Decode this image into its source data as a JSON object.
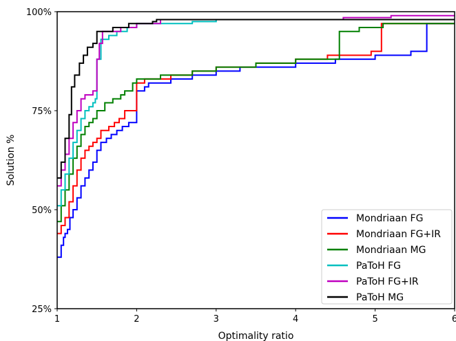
{
  "chart_data": {
    "type": "line",
    "xlabel": "Optimality ratio",
    "ylabel": "Solution %",
    "xlim": [
      1,
      6
    ],
    "ylim": [
      25,
      100
    ],
    "xticks": [
      1,
      2,
      3,
      4,
      5,
      6
    ],
    "xtick_labels": [
      "1",
      "2",
      "3",
      "4",
      "5",
      "6"
    ],
    "yticks": [
      25,
      50,
      75,
      100
    ],
    "ytick_labels": [
      "25%",
      "50%",
      "75%",
      "100%"
    ],
    "grid": false,
    "legend_position": "lower-right",
    "series": [
      {
        "name": "Mondriaan FG",
        "color": "#0000ff",
        "points": [
          [
            1.0,
            38
          ],
          [
            1.05,
            41
          ],
          [
            1.08,
            43
          ],
          [
            1.1,
            44
          ],
          [
            1.13,
            45
          ],
          [
            1.16,
            48
          ],
          [
            1.2,
            50
          ],
          [
            1.25,
            53
          ],
          [
            1.3,
            56
          ],
          [
            1.35,
            58
          ],
          [
            1.4,
            60
          ],
          [
            1.45,
            62
          ],
          [
            1.5,
            65
          ],
          [
            1.55,
            67
          ],
          [
            1.62,
            68
          ],
          [
            1.68,
            69
          ],
          [
            1.75,
            70
          ],
          [
            1.82,
            71
          ],
          [
            1.9,
            72
          ],
          [
            2.0,
            80
          ],
          [
            2.1,
            81
          ],
          [
            2.15,
            82
          ],
          [
            2.3,
            82
          ],
          [
            2.43,
            83
          ],
          [
            2.7,
            84
          ],
          [
            3.0,
            85
          ],
          [
            3.3,
            86
          ],
          [
            3.75,
            86
          ],
          [
            4.0,
            87
          ],
          [
            4.3,
            87
          ],
          [
            4.5,
            88
          ],
          [
            4.9,
            88
          ],
          [
            5.0,
            89
          ],
          [
            5.2,
            89
          ],
          [
            5.45,
            90
          ],
          [
            5.65,
            97
          ],
          [
            6.0,
            97
          ]
        ]
      },
      {
        "name": "Mondriaan FG+IR",
        "color": "#ff0000",
        "points": [
          [
            1.0,
            44
          ],
          [
            1.05,
            46
          ],
          [
            1.1,
            48
          ],
          [
            1.15,
            52
          ],
          [
            1.2,
            56
          ],
          [
            1.25,
            60
          ],
          [
            1.3,
            63
          ],
          [
            1.35,
            65
          ],
          [
            1.4,
            66
          ],
          [
            1.45,
            67
          ],
          [
            1.5,
            68
          ],
          [
            1.55,
            70
          ],
          [
            1.65,
            71
          ],
          [
            1.72,
            72
          ],
          [
            1.78,
            73
          ],
          [
            1.85,
            75
          ],
          [
            1.95,
            75
          ],
          [
            2.0,
            82
          ],
          [
            2.1,
            83
          ],
          [
            2.3,
            83
          ],
          [
            2.43,
            84
          ],
          [
            2.7,
            85
          ],
          [
            2.9,
            85
          ],
          [
            3.0,
            86
          ],
          [
            3.3,
            86
          ],
          [
            3.5,
            87
          ],
          [
            3.8,
            87
          ],
          [
            4.0,
            88
          ],
          [
            4.3,
            88
          ],
          [
            4.4,
            89
          ],
          [
            4.8,
            89
          ],
          [
            4.95,
            90
          ],
          [
            5.05,
            90
          ],
          [
            5.08,
            97
          ],
          [
            6.0,
            97
          ]
        ]
      },
      {
        "name": "Mondriaan MG",
        "color": "#008000",
        "points": [
          [
            1.0,
            47
          ],
          [
            1.05,
            51
          ],
          [
            1.1,
            55
          ],
          [
            1.15,
            59
          ],
          [
            1.2,
            63
          ],
          [
            1.25,
            66
          ],
          [
            1.3,
            69
          ],
          [
            1.35,
            71
          ],
          [
            1.4,
            72
          ],
          [
            1.45,
            73
          ],
          [
            1.5,
            75
          ],
          [
            1.6,
            77
          ],
          [
            1.7,
            78
          ],
          [
            1.8,
            79
          ],
          [
            1.85,
            80
          ],
          [
            1.95,
            82
          ],
          [
            2.0,
            83
          ],
          [
            2.2,
            83
          ],
          [
            2.3,
            84
          ],
          [
            2.6,
            84
          ],
          [
            2.7,
            85
          ],
          [
            2.9,
            85
          ],
          [
            3.0,
            86
          ],
          [
            3.4,
            86
          ],
          [
            3.5,
            87
          ],
          [
            3.8,
            87
          ],
          [
            4.0,
            88
          ],
          [
            4.4,
            88
          ],
          [
            4.55,
            95
          ],
          [
            4.7,
            95
          ],
          [
            4.8,
            96
          ],
          [
            5.0,
            96
          ],
          [
            5.1,
            97
          ],
          [
            6.0,
            97
          ]
        ]
      },
      {
        "name": "PaToH FG",
        "color": "#00bfbf",
        "points": [
          [
            1.0,
            51
          ],
          [
            1.05,
            55
          ],
          [
            1.1,
            59
          ],
          [
            1.15,
            63
          ],
          [
            1.2,
            67
          ],
          [
            1.25,
            70
          ],
          [
            1.3,
            73
          ],
          [
            1.35,
            75
          ],
          [
            1.4,
            76
          ],
          [
            1.45,
            77
          ],
          [
            1.48,
            78
          ],
          [
            1.5,
            88
          ],
          [
            1.55,
            93
          ],
          [
            1.65,
            94
          ],
          [
            1.75,
            95
          ],
          [
            1.82,
            95
          ],
          [
            1.88,
            96
          ],
          [
            2.0,
            97
          ],
          [
            2.5,
            97
          ],
          [
            2.7,
            97.5
          ],
          [
            3.0,
            98
          ],
          [
            6.0,
            98
          ]
        ]
      },
      {
        "name": "PaToH FG+IR",
        "color": "#bf00bf",
        "points": [
          [
            1.0,
            56
          ],
          [
            1.05,
            60
          ],
          [
            1.1,
            64
          ],
          [
            1.15,
            68
          ],
          [
            1.2,
            72
          ],
          [
            1.25,
            75
          ],
          [
            1.3,
            78
          ],
          [
            1.35,
            79
          ],
          [
            1.45,
            80
          ],
          [
            1.5,
            88
          ],
          [
            1.53,
            92
          ],
          [
            1.57,
            95
          ],
          [
            1.7,
            95
          ],
          [
            1.8,
            96
          ],
          [
            2.0,
            97
          ],
          [
            2.3,
            98
          ],
          [
            2.6,
            98
          ],
          [
            3.0,
            98
          ],
          [
            4.0,
            98
          ],
          [
            4.6,
            98.5
          ],
          [
            5.2,
            99
          ],
          [
            6.0,
            99
          ]
        ]
      },
      {
        "name": "PaToH MG",
        "color": "#000000",
        "points": [
          [
            1.0,
            58
          ],
          [
            1.05,
            62
          ],
          [
            1.1,
            68
          ],
          [
            1.15,
            74
          ],
          [
            1.18,
            81
          ],
          [
            1.22,
            84
          ],
          [
            1.28,
            87
          ],
          [
            1.33,
            89
          ],
          [
            1.38,
            91
          ],
          [
            1.45,
            92
          ],
          [
            1.5,
            95
          ],
          [
            1.65,
            95
          ],
          [
            1.7,
            96
          ],
          [
            1.9,
            97
          ],
          [
            2.0,
            97
          ],
          [
            2.2,
            97.5
          ],
          [
            2.25,
            98
          ],
          [
            3.0,
            98
          ],
          [
            4.0,
            98
          ],
          [
            5.0,
            98
          ],
          [
            6.0,
            98
          ]
        ]
      }
    ]
  }
}
